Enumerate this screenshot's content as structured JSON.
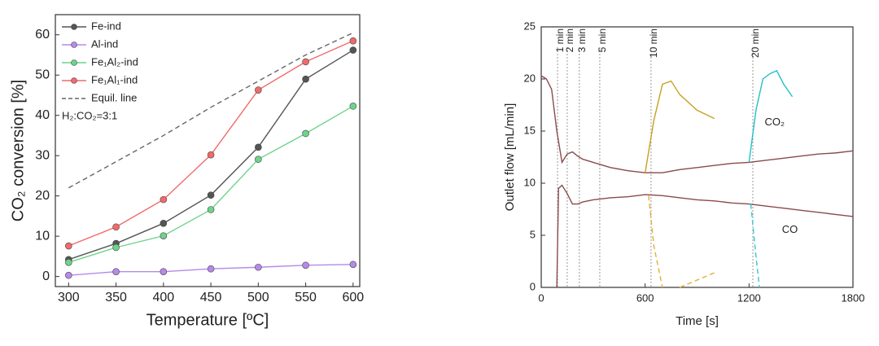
{
  "chart_data": [
    {
      "type": "line",
      "xlabel": "Temperature [ºC]",
      "ylabel": "CO₂ conversion [%]",
      "x": [
        300,
        350,
        400,
        450,
        500,
        550,
        600
      ],
      "xlim": [
        286,
        607
      ],
      "xticks": [
        300,
        350,
        400,
        450,
        500,
        550,
        600
      ],
      "ylim": [
        -2.5,
        65
      ],
      "yticks": [
        0,
        10,
        20,
        30,
        40,
        50,
        60
      ],
      "legend": "upper left",
      "annotation": "H₂:CO₂=3:1",
      "series": [
        {
          "name": "Fe-ind",
          "color": "#555555",
          "marker": "circle",
          "values": [
            4.2,
            8.2,
            13.2,
            20.2,
            32.1,
            49,
            56.2
          ]
        },
        {
          "name": "Al-ind",
          "color": "#b58ae8",
          "marker": "circle",
          "values": [
            0.3,
            1.2,
            1.2,
            1.9,
            2.3,
            2.8,
            3.0
          ]
        },
        {
          "name": "Fe₁Al₂-ind",
          "color": "#6fd38a",
          "marker": "circle",
          "values": [
            3.5,
            7.2,
            10.1,
            16.6,
            29.1,
            35.5,
            42.3
          ]
        },
        {
          "name": "Fe₁Al₁-ind",
          "color": "#f06a6a",
          "marker": "circle",
          "values": [
            7.6,
            12.3,
            19.1,
            30.2,
            46.3,
            53.3,
            58.5
          ]
        },
        {
          "name": "Equil. line",
          "color": "#666666",
          "marker": "none",
          "dashed": true,
          "values": [
            22,
            28.5,
            35,
            42,
            48.5,
            55,
            60.5
          ]
        }
      ]
    },
    {
      "type": "line",
      "xlabel": "Time [s]",
      "ylabel": "Outlet flow [mL/min]",
      "xlim": [
        0,
        1800
      ],
      "xticks": [
        0,
        600,
        1200,
        1800
      ],
      "ylim": [
        0,
        25
      ],
      "yticks": [
        0,
        5,
        10,
        15,
        20,
        25
      ],
      "markers": [
        {
          "text": "1 min",
          "x": 94
        },
        {
          "text": "2 min",
          "x": 150
        },
        {
          "text": "3 min",
          "x": 220
        },
        {
          "text": "5 min",
          "x": 338
        },
        {
          "text": "10 min",
          "x": 634
        },
        {
          "text": "20 min",
          "x": 1222
        }
      ],
      "labels": [
        {
          "text": "CO₂",
          "x": 1290,
          "y": 15.8
        },
        {
          "text": "CO",
          "x": 1390,
          "y": 5.5
        }
      ],
      "series": [
        {
          "color": "#8b4a4a",
          "x": [
            0,
            30,
            60,
            90,
            120,
            150,
            180,
            210,
            240,
            300,
            400,
            500,
            600,
            700,
            800,
            900,
            1000,
            1100,
            1200,
            1300,
            1400,
            1500,
            1600,
            1700,
            1800
          ],
          "values": [
            20.3,
            20,
            19,
            15,
            12,
            12.8,
            13,
            12.6,
            12.3,
            12,
            11.5,
            11.2,
            11,
            11,
            11.3,
            11.5,
            11.7,
            11.9,
            12,
            12.2,
            12.4,
            12.6,
            12.8,
            12.9,
            13.1
          ]
        },
        {
          "color": "#8b4a4a",
          "x": [
            90,
            100,
            120,
            150,
            180,
            210,
            240,
            300,
            400,
            500,
            600,
            700,
            800,
            900,
            1000,
            1100,
            1200,
            1300,
            1400,
            1500,
            1600,
            1700,
            1800
          ],
          "values": [
            0,
            9.5,
            9.8,
            9,
            8,
            8,
            8.2,
            8.4,
            8.6,
            8.7,
            8.9,
            8.8,
            8.6,
            8.4,
            8.3,
            8.1,
            8,
            7.8,
            7.6,
            7.4,
            7.2,
            7,
            6.8
          ]
        },
        {
          "color": "#c8a020",
          "x": [
            600,
            650,
            700,
            750,
            800,
            900,
            1000
          ],
          "values": [
            11,
            16,
            19.5,
            19.8,
            18.5,
            17,
            16.2
          ]
        },
        {
          "color": "#e0b030",
          "dashed": true,
          "x": [
            620,
            650,
            700,
            750,
            800,
            900,
            1000
          ],
          "values": [
            8.8,
            4,
            0,
            null,
            0,
            0.7,
            1.4
          ]
        },
        {
          "color": "#20c0c8",
          "x": [
            1200,
            1240,
            1280,
            1320,
            1360,
            1400,
            1450
          ],
          "values": [
            12,
            17,
            20,
            20.5,
            20.8,
            19.5,
            18.3
          ]
        },
        {
          "color": "#30c8d0",
          "dashed": true,
          "x": [
            1210,
            1240,
            1260
          ],
          "values": [
            8,
            3,
            0
          ]
        }
      ]
    }
  ]
}
